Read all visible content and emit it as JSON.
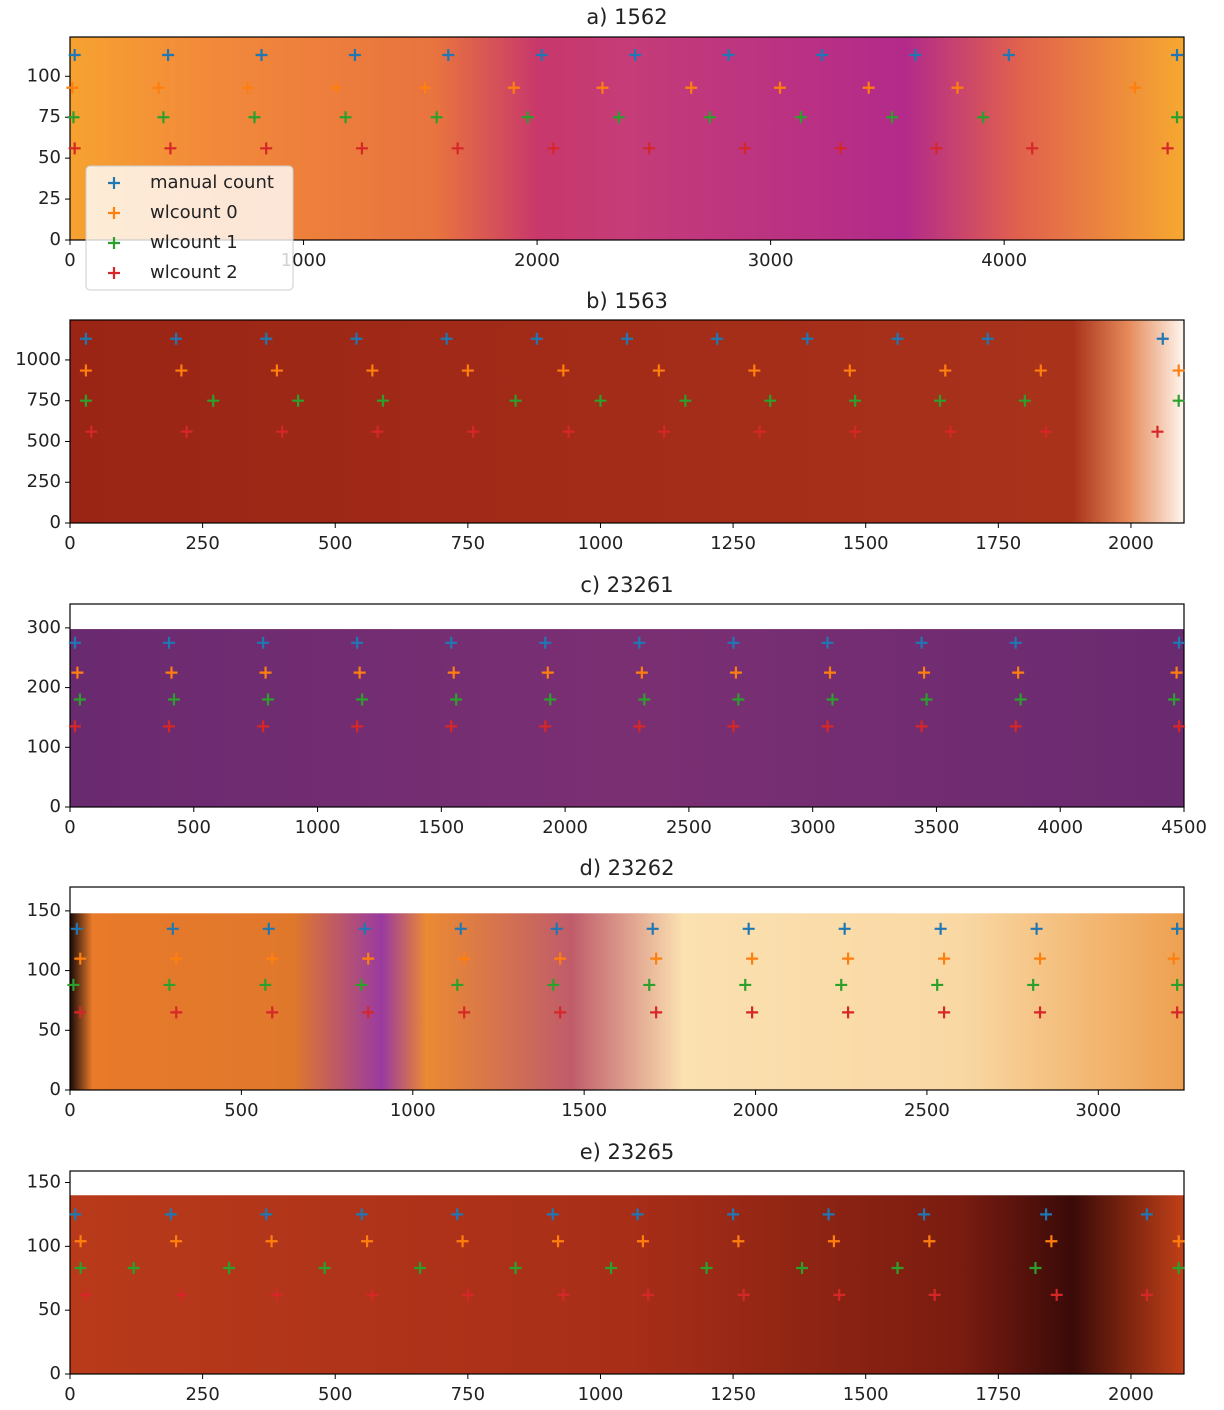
{
  "chart_data": [
    {
      "type": "scatter",
      "title": "a) 1562",
      "xlim": [
        0,
        4770
      ],
      "ylim": [
        0,
        124
      ],
      "xticks": [
        0,
        1000,
        2000,
        3000,
        4000
      ],
      "yticks": [
        0,
        25,
        50,
        75,
        100
      ],
      "legend": "lower left",
      "series": [
        {
          "name": "manual count",
          "color": "#1f77b4",
          "x": [
            20,
            420,
            820,
            1220,
            1620,
            2020,
            2420,
            2820,
            3220,
            3620,
            4020,
            4740
          ],
          "values": [
            113,
            113,
            113,
            113,
            113,
            113,
            113,
            113,
            113,
            113,
            113,
            113
          ]
        },
        {
          "name": "wlcount 0",
          "color": "#ff7f0e",
          "x": [
            10,
            380,
            760,
            1140,
            1520,
            1900,
            2280,
            2660,
            3040,
            3420,
            3800,
            4560
          ],
          "values": [
            93,
            93,
            93,
            93,
            93,
            93,
            93,
            93,
            93,
            93,
            93,
            93
          ]
        },
        {
          "name": "wlcount 1",
          "color": "#2ca02c",
          "x": [
            15,
            400,
            790,
            1180,
            1570,
            1960,
            2350,
            2740,
            3130,
            3520,
            3910,
            4740
          ],
          "values": [
            75,
            75,
            75,
            75,
            75,
            75,
            75,
            75,
            75,
            75,
            75,
            75
          ]
        },
        {
          "name": "wlcount 2",
          "color": "#d62728",
          "x": [
            20,
            430,
            840,
            1250,
            1660,
            2070,
            2480,
            2890,
            3300,
            3710,
            4120,
            4700
          ],
          "values": [
            56,
            56,
            56,
            56,
            56,
            56,
            56,
            56,
            56,
            56,
            56,
            56
          ]
        }
      ]
    },
    {
      "type": "scatter",
      "title": "b) 1563",
      "xlim": [
        0,
        2100
      ],
      "ylim": [
        0,
        1245
      ],
      "xticks": [
        0,
        250,
        500,
        750,
        1000,
        1250,
        1500,
        1750,
        2000
      ],
      "yticks": [
        0,
        250,
        500,
        750,
        1000
      ],
      "series": [
        {
          "color": "#1f77b4",
          "x": [
            30,
            200,
            370,
            540,
            710,
            880,
            1050,
            1220,
            1390,
            1560,
            1730,
            2060
          ],
          "values": [
            1130,
            1130,
            1130,
            1130,
            1130,
            1130,
            1130,
            1130,
            1130,
            1130,
            1130,
            1130
          ]
        },
        {
          "color": "#ff7f0e",
          "x": [
            30,
            210,
            390,
            570,
            750,
            930,
            1110,
            1290,
            1470,
            1650,
            1830,
            2090
          ],
          "values": [
            935,
            935,
            935,
            935,
            935,
            935,
            935,
            935,
            935,
            935,
            935,
            935
          ]
        },
        {
          "color": "#2ca02c",
          "x": [
            30,
            270,
            430,
            590,
            840,
            1000,
            1160,
            1320,
            1480,
            1640,
            1800,
            2090
          ],
          "values": [
            750,
            750,
            750,
            750,
            750,
            750,
            750,
            750,
            750,
            750,
            750,
            750
          ]
        },
        {
          "color": "#d62728",
          "x": [
            40,
            220,
            400,
            580,
            760,
            940,
            1120,
            1300,
            1480,
            1660,
            1840,
            2050
          ],
          "values": [
            560,
            560,
            560,
            560,
            560,
            560,
            560,
            560,
            560,
            560,
            560,
            560
          ]
        }
      ]
    },
    {
      "type": "scatter",
      "title": "c) 23261",
      "xlim": [
        0,
        4500
      ],
      "ylim": [
        0,
        340
      ],
      "xticks": [
        0,
        500,
        1000,
        1500,
        2000,
        2500,
        3000,
        3500,
        4000,
        4500
      ],
      "yticks": [
        0,
        100,
        200,
        300
      ],
      "series": [
        {
          "color": "#1f77b4",
          "x": [
            20,
            400,
            780,
            1160,
            1540,
            1920,
            2300,
            2680,
            3060,
            3440,
            3820,
            4480
          ],
          "values": [
            275,
            275,
            275,
            275,
            275,
            275,
            275,
            275,
            275,
            275,
            275,
            275
          ]
        },
        {
          "color": "#ff7f0e",
          "x": [
            30,
            410,
            790,
            1170,
            1550,
            1930,
            2310,
            2690,
            3070,
            3450,
            3830,
            4470
          ],
          "values": [
            225,
            225,
            225,
            225,
            225,
            225,
            225,
            225,
            225,
            225,
            225,
            225
          ]
        },
        {
          "color": "#2ca02c",
          "x": [
            40,
            420,
            800,
            1180,
            1560,
            1940,
            2320,
            2700,
            3080,
            3460,
            3840,
            4460
          ],
          "values": [
            180,
            180,
            180,
            180,
            180,
            180,
            180,
            180,
            180,
            180,
            180,
            180
          ]
        },
        {
          "color": "#d62728",
          "x": [
            20,
            400,
            780,
            1160,
            1540,
            1920,
            2300,
            2680,
            3060,
            3440,
            3820,
            4480
          ],
          "values": [
            135,
            135,
            135,
            135,
            135,
            135,
            135,
            135,
            135,
            135,
            135,
            135
          ]
        }
      ]
    },
    {
      "type": "scatter",
      "title": "d) 23262",
      "xlim": [
        0,
        3250
      ],
      "ylim": [
        0,
        170
      ],
      "xticks": [
        0,
        500,
        1000,
        1500,
        2000,
        2500,
        3000
      ],
      "yticks": [
        0,
        50,
        100,
        150
      ],
      "series": [
        {
          "color": "#1f77b4",
          "x": [
            20,
            300,
            580,
            860,
            1140,
            1420,
            1700,
            1980,
            2260,
            2540,
            2820,
            3230
          ],
          "values": [
            135,
            135,
            135,
            135,
            135,
            135,
            135,
            135,
            135,
            135,
            135,
            135
          ]
        },
        {
          "color": "#ff7f0e",
          "x": [
            30,
            310,
            590,
            870,
            1150,
            1430,
            1710,
            1990,
            2270,
            2550,
            2830,
            3220
          ],
          "values": [
            110,
            110,
            110,
            110,
            110,
            110,
            110,
            110,
            110,
            110,
            110,
            110
          ]
        },
        {
          "color": "#2ca02c",
          "x": [
            10,
            290,
            570,
            850,
            1130,
            1410,
            1690,
            1970,
            2250,
            2530,
            2810,
            3230
          ],
          "values": [
            88,
            88,
            88,
            88,
            88,
            88,
            88,
            88,
            88,
            88,
            88,
            88
          ]
        },
        {
          "color": "#d62728",
          "x": [
            30,
            310,
            590,
            870,
            1150,
            1430,
            1710,
            1990,
            2270,
            2550,
            2830,
            3230
          ],
          "values": [
            65,
            65,
            65,
            65,
            65,
            65,
            65,
            65,
            65,
            65,
            65,
            65
          ]
        }
      ]
    },
    {
      "type": "scatter",
      "title": "e) 23265",
      "xlim": [
        0,
        2100
      ],
      "ylim": [
        0,
        159
      ],
      "xticks": [
        0,
        250,
        500,
        750,
        1000,
        1250,
        1500,
        1750,
        2000
      ],
      "yticks": [
        0,
        50,
        100,
        150
      ],
      "series": [
        {
          "color": "#1f77b4",
          "x": [
            10,
            190,
            370,
            550,
            730,
            910,
            1070,
            1250,
            1430,
            1610,
            1840,
            2030
          ],
          "values": [
            125,
            125,
            125,
            125,
            125,
            125,
            125,
            125,
            125,
            125,
            125,
            125
          ]
        },
        {
          "color": "#ff7f0e",
          "x": [
            20,
            200,
            380,
            560,
            740,
            920,
            1080,
            1260,
            1440,
            1620,
            1850,
            2090
          ],
          "values": [
            104,
            104,
            104,
            104,
            104,
            104,
            104,
            104,
            104,
            104,
            104,
            104
          ]
        },
        {
          "color": "#2ca02c",
          "x": [
            20,
            120,
            300,
            480,
            660,
            840,
            1020,
            1200,
            1380,
            1560,
            1820,
            2090
          ],
          "values": [
            83,
            83,
            83,
            83,
            83,
            83,
            83,
            83,
            83,
            83,
            83,
            83
          ]
        },
        {
          "color": "#d62728",
          "x": [
            30,
            210,
            390,
            570,
            750,
            930,
            1090,
            1270,
            1450,
            1630,
            1860,
            2030
          ],
          "values": [
            62,
            62,
            62,
            62,
            62,
            62,
            62,
            62,
            62,
            62,
            62,
            62
          ]
        }
      ]
    }
  ]
}
